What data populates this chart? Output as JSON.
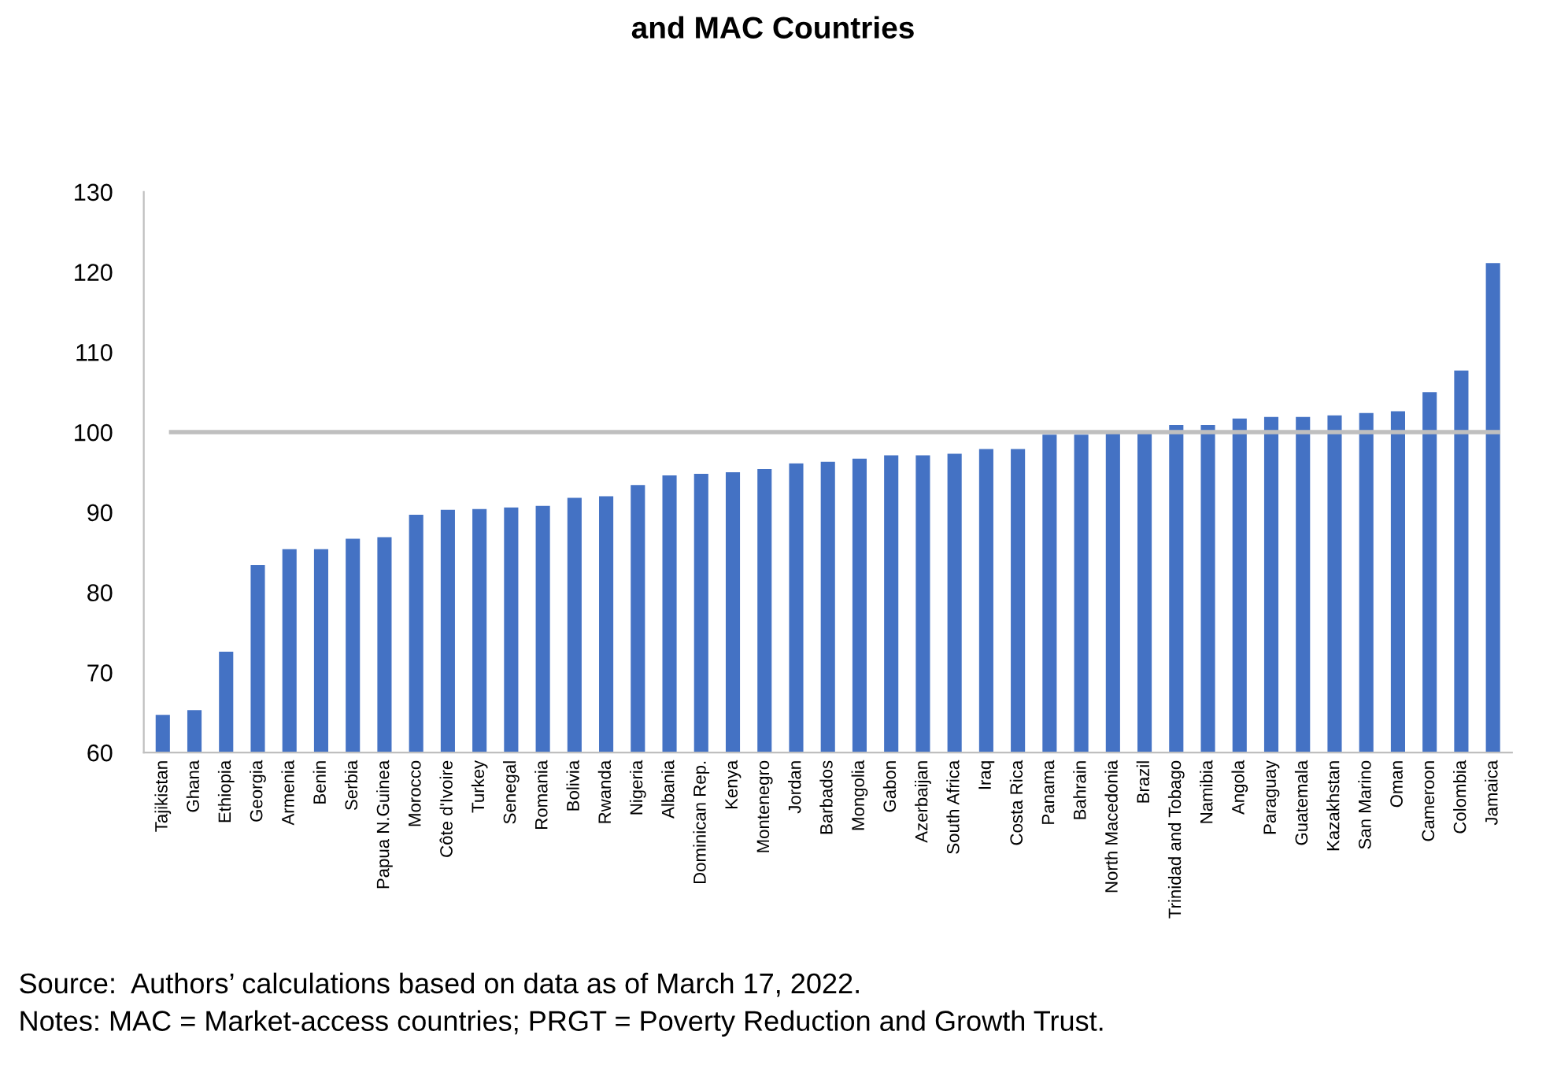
{
  "chart_data": {
    "type": "bar",
    "title": "and MAC Countries",
    "categories": [
      "Tajikistan",
      "Ghana",
      "Ethiopia",
      "Georgia",
      "Armenia",
      "Benin",
      "Serbia",
      "Papua N.Guinea",
      "Morocco",
      "Côte d'Ivoire",
      "Turkey",
      "Senegal",
      "Romania",
      "Bolivia",
      "Rwanda",
      "Nigeria",
      "Albania",
      "Dominican Rep.",
      "Kenya",
      "Montenegro",
      "Jordan",
      "Barbados",
      "Mongolia",
      "Gabon",
      "Azerbaijan",
      "South Africa",
      "Iraq",
      "Costa Rica",
      "Panama",
      "Bahrain",
      "North Macedonia",
      "Brazil",
      "Trinidad and Tobago",
      "Namibia",
      "Angola",
      "Paraguay",
      "Guatemala",
      "Kazakhstan",
      "San Marino",
      "Oman",
      "Cameroon",
      "Colombia",
      "Jamaica"
    ],
    "values": [
      64.7,
      65.3,
      72.6,
      83.4,
      85.4,
      85.4,
      86.7,
      86.9,
      89.7,
      90.3,
      90.4,
      90.6,
      90.8,
      91.8,
      92.0,
      93.4,
      94.6,
      94.8,
      95.0,
      95.4,
      96.1,
      96.3,
      96.7,
      97.1,
      97.1,
      97.3,
      97.9,
      97.9,
      99.7,
      99.7,
      100.0,
      100.0,
      100.9,
      100.9,
      101.7,
      101.9,
      101.9,
      102.1,
      102.4,
      102.6,
      105.0,
      107.7,
      121.1
    ],
    "color": "#4472c4",
    "ylim": [
      60,
      130
    ],
    "yticks": [
      60,
      70,
      80,
      90,
      100,
      110,
      120,
      130
    ],
    "ref_lines": [
      {
        "axis": "y",
        "value": 100,
        "color": "#bfbfbf"
      }
    ],
    "grid": false,
    "legend": false,
    "annotations": [
      "Source:  Authors’ calculations based on data as of March 17, 2022.",
      "Notes: MAC = Market-access countries; PRGT = Poverty Reduction and Growth Trust."
    ]
  }
}
